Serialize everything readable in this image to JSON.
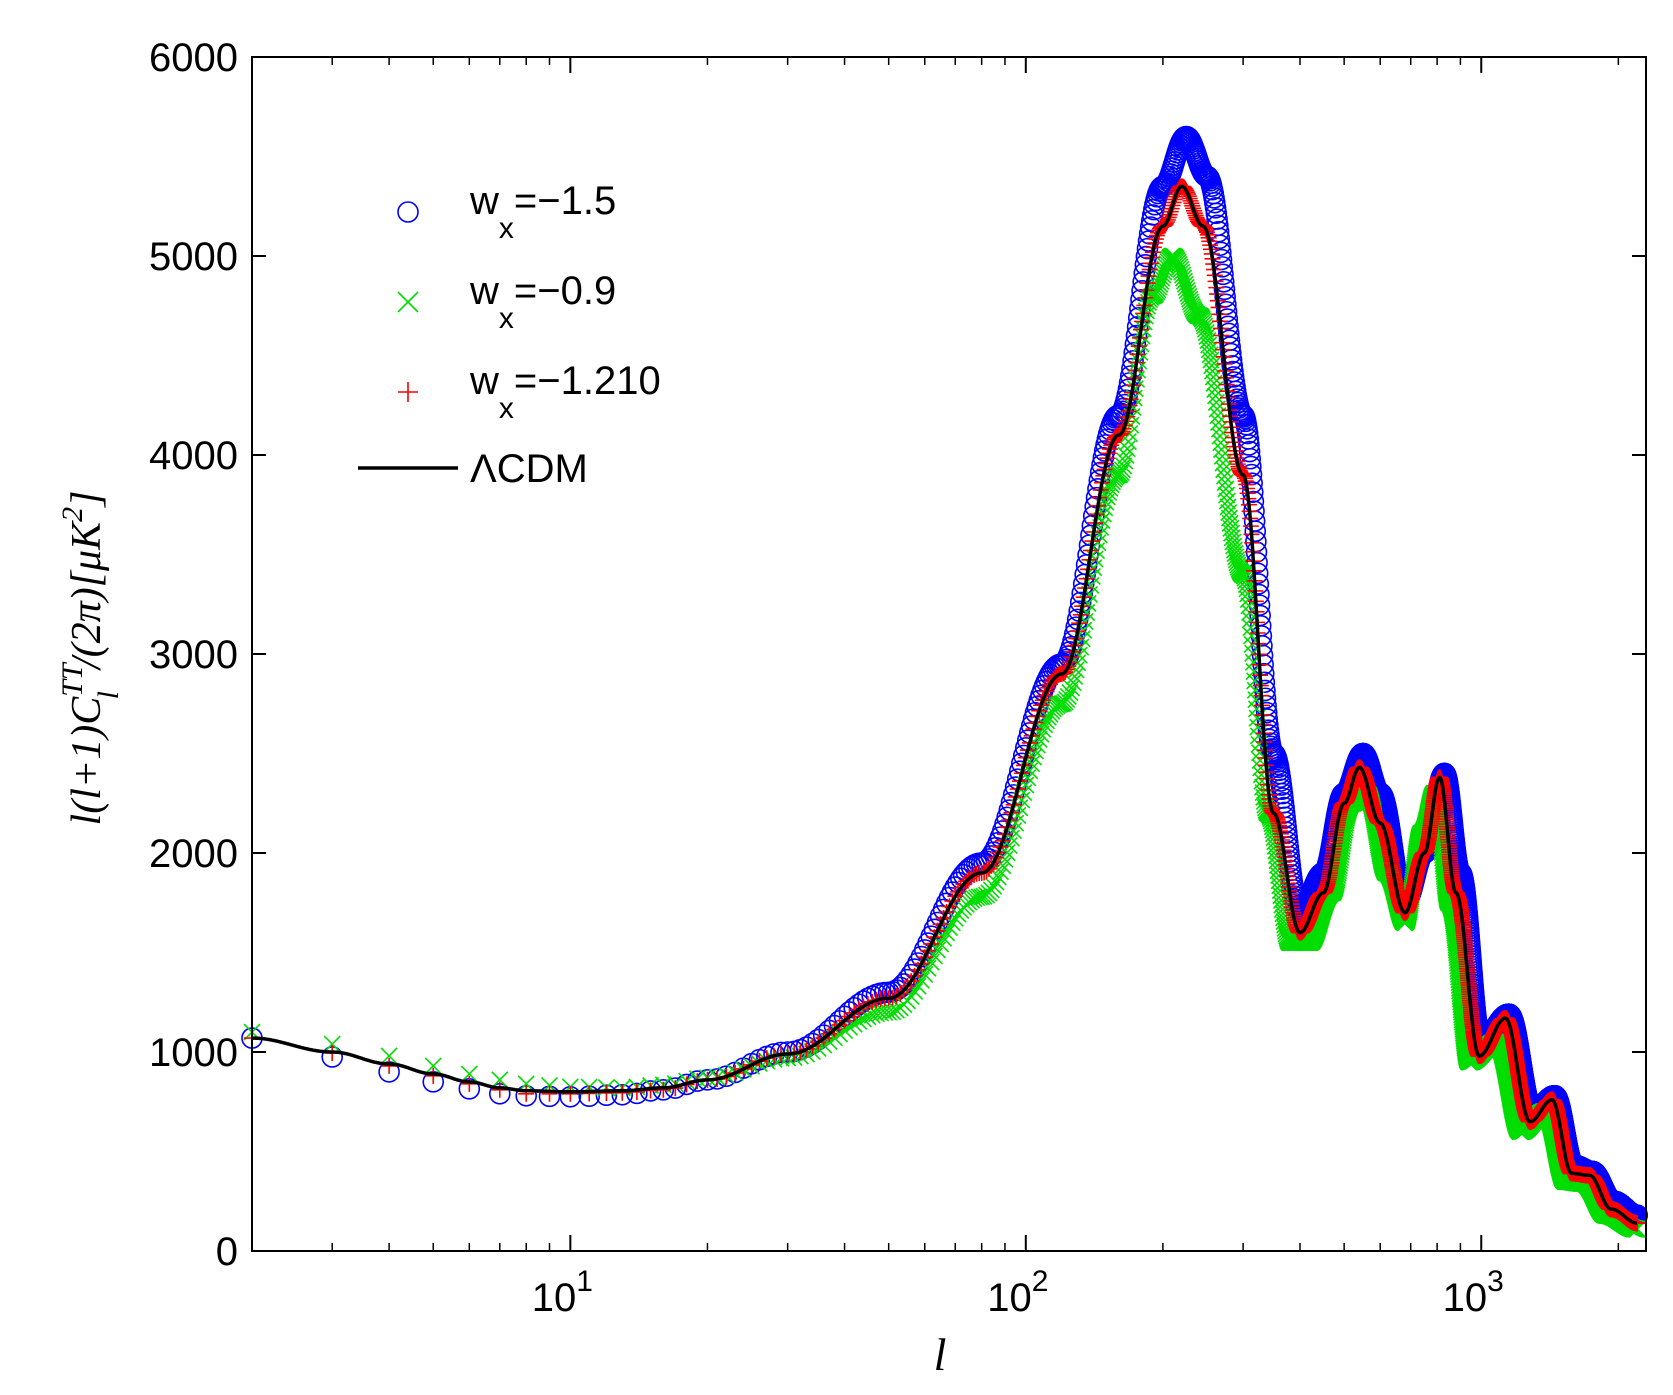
{
  "chart_data": {
    "type": "scatter",
    "title": "",
    "xlabel": "l",
    "ylabel": "l(l+1)C_l^TT/(2π)[μK^2]",
    "xscale": "log",
    "xlim": [
      2,
      2300
    ],
    "ylim": [
      0,
      6000
    ],
    "x_ticks": [
      10,
      100,
      1000
    ],
    "x_tick_labels": [
      {
        "base": "10",
        "exp": "1"
      },
      {
        "base": "10",
        "exp": "2"
      },
      {
        "base": "10",
        "exp": "3"
      }
    ],
    "y_ticks": [
      0,
      1000,
      2000,
      3000,
      4000,
      5000,
      6000
    ],
    "y_tick_labels": [
      "0",
      "1000",
      "2000",
      "3000",
      "4000",
      "5000",
      "6000"
    ],
    "legend_position": "top-left",
    "series": [
      {
        "name": "w_x=-1.5",
        "label_main": "w",
        "label_sub": "x",
        "label_rest": "=−1.5",
        "marker": "circle",
        "color": "#0000ff",
        "points": [
          [
            2,
            1070
          ],
          [
            3,
            975
          ],
          [
            4,
            900
          ],
          [
            5,
            850
          ],
          [
            6,
            815
          ],
          [
            7,
            790
          ],
          [
            8,
            780
          ],
          [
            10,
            775
          ],
          [
            13,
            785
          ],
          [
            16,
            810
          ],
          [
            20,
            860
          ],
          [
            30,
            1000
          ],
          [
            50,
            1300
          ],
          [
            80,
            1950
          ],
          [
            120,
            2950
          ],
          [
            160,
            4200
          ],
          [
            200,
            5350
          ],
          [
            225,
            5600
          ],
          [
            250,
            5400
          ],
          [
            300,
            4200
          ],
          [
            350,
            2500
          ],
          [
            400,
            1700
          ],
          [
            450,
            1900
          ],
          [
            500,
            2300
          ],
          [
            550,
            2500
          ],
          [
            600,
            2300
          ],
          [
            680,
            1750
          ],
          [
            750,
            2000
          ],
          [
            830,
            2400
          ],
          [
            900,
            1900
          ],
          [
            1000,
            1050
          ],
          [
            1150,
            1190
          ],
          [
            1300,
            700
          ],
          [
            1450,
            780
          ],
          [
            1600,
            430
          ],
          [
            1750,
            400
          ],
          [
            1950,
            250
          ],
          [
            2200,
            180
          ]
        ]
      },
      {
        "name": "w_x=-0.9",
        "label_main": "w",
        "label_sub": "x",
        "label_rest": "=−0.9",
        "marker": "x",
        "color": "#00dd00",
        "points": [
          [
            2,
            1100
          ],
          [
            3,
            1040
          ],
          [
            4,
            980
          ],
          [
            5,
            930
          ],
          [
            6,
            890
          ],
          [
            7,
            860
          ],
          [
            8,
            840
          ],
          [
            10,
            825
          ],
          [
            13,
            820
          ],
          [
            16,
            835
          ],
          [
            20,
            870
          ],
          [
            30,
            970
          ],
          [
            50,
            1200
          ],
          [
            80,
            1780
          ],
          [
            120,
            2750
          ],
          [
            160,
            3900
          ],
          [
            190,
            4800
          ],
          [
            210,
            5000
          ],
          [
            240,
            4700
          ],
          [
            300,
            3400
          ],
          [
            340,
            2200
          ],
          [
            380,
            1550
          ],
          [
            420,
            1550
          ],
          [
            470,
            1800
          ],
          [
            520,
            2250
          ],
          [
            560,
            2300
          ],
          [
            620,
            1900
          ],
          [
            680,
            1650
          ],
          [
            740,
            2100
          ],
          [
            790,
            2300
          ],
          [
            850,
            1750
          ],
          [
            940,
            950
          ],
          [
            1080,
            1050
          ],
          [
            1220,
            600
          ],
          [
            1380,
            700
          ],
          [
            1530,
            350
          ],
          [
            1680,
            340
          ],
          [
            1880,
            180
          ],
          [
            2200,
            110
          ]
        ]
      },
      {
        "name": "w_x=-1.210",
        "label_main": "w",
        "label_sub": "x",
        "label_rest": "=−1.210",
        "marker": "plus",
        "color": "#ff0000",
        "points": [
          [
            2,
            1070
          ],
          [
            3,
            995
          ],
          [
            4,
            930
          ],
          [
            5,
            880
          ],
          [
            6,
            840
          ],
          [
            7,
            810
          ],
          [
            8,
            790
          ],
          [
            10,
            790
          ],
          [
            13,
            795
          ],
          [
            16,
            810
          ],
          [
            20,
            860
          ],
          [
            30,
            990
          ],
          [
            50,
            1270
          ],
          [
            80,
            1900
          ],
          [
            120,
            2900
          ],
          [
            160,
            4100
          ],
          [
            200,
            5150
          ],
          [
            220,
            5350
          ],
          [
            245,
            5150
          ],
          [
            300,
            3900
          ],
          [
            350,
            2200
          ],
          [
            400,
            1600
          ],
          [
            450,
            1800
          ],
          [
            500,
            2250
          ],
          [
            540,
            2430
          ],
          [
            600,
            2150
          ],
          [
            680,
            1700
          ],
          [
            750,
            2000
          ],
          [
            810,
            2380
          ],
          [
            880,
            1800
          ],
          [
            990,
            980
          ],
          [
            1130,
            1170
          ],
          [
            1280,
            650
          ],
          [
            1430,
            760
          ],
          [
            1580,
            390
          ],
          [
            1730,
            380
          ],
          [
            1930,
            210
          ],
          [
            2200,
            140
          ]
        ]
      },
      {
        "name": "ΛCDM",
        "marker": "line",
        "color": "#000000",
        "points": [
          [
            2,
            1070
          ],
          [
            3,
            1000
          ],
          [
            4,
            940
          ],
          [
            5,
            890
          ],
          [
            6,
            850
          ],
          [
            7,
            820
          ],
          [
            8,
            805
          ],
          [
            10,
            800
          ],
          [
            13,
            805
          ],
          [
            16,
            820
          ],
          [
            20,
            860
          ],
          [
            30,
            990
          ],
          [
            50,
            1270
          ],
          [
            80,
            1900
          ],
          [
            120,
            2900
          ],
          [
            160,
            4100
          ],
          [
            200,
            5150
          ],
          [
            220,
            5350
          ],
          [
            245,
            5150
          ],
          [
            300,
            3900
          ],
          [
            350,
            2200
          ],
          [
            400,
            1600
          ],
          [
            450,
            1800
          ],
          [
            500,
            2250
          ],
          [
            540,
            2430
          ],
          [
            600,
            2150
          ],
          [
            680,
            1700
          ],
          [
            750,
            2000
          ],
          [
            810,
            2380
          ],
          [
            880,
            1800
          ],
          [
            990,
            980
          ],
          [
            1130,
            1170
          ],
          [
            1280,
            650
          ],
          [
            1430,
            760
          ],
          [
            1580,
            390
          ],
          [
            1730,
            380
          ],
          [
            1930,
            210
          ],
          [
            2200,
            140
          ]
        ]
      }
    ]
  }
}
